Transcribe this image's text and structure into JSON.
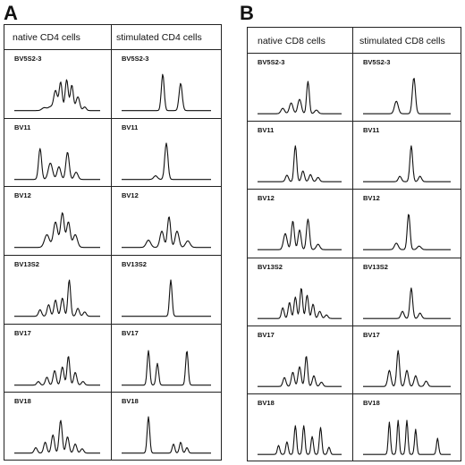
{
  "panels": [
    {
      "letter": "A",
      "columns": [
        "native CD4 cells",
        "stimulated CD4 cells"
      ],
      "rows": [
        {
          "native_label": "BV5S2-3",
          "stim_label": "BV5S2-3",
          "native_peaks": [
            [
              0.35,
              0.08,
              0.08
            ],
            [
              0.42,
              0.1,
              0.07
            ],
            [
              0.48,
              0.55,
              0.06
            ],
            [
              0.54,
              0.78,
              0.05
            ],
            [
              0.61,
              0.85,
              0.05
            ],
            [
              0.67,
              0.7,
              0.05
            ],
            [
              0.74,
              0.38,
              0.06
            ],
            [
              0.82,
              0.1,
              0.05
            ]
          ],
          "stim_peaks": [
            [
              0.46,
              1.0,
              0.045
            ],
            [
              0.66,
              0.75,
              0.05
            ]
          ]
        },
        {
          "native_label": "BV11",
          "stim_label": "BV11",
          "native_peaks": [
            [
              0.3,
              0.85,
              0.05
            ],
            [
              0.42,
              0.45,
              0.07
            ],
            [
              0.52,
              0.35,
              0.06
            ],
            [
              0.62,
              0.75,
              0.055
            ],
            [
              0.72,
              0.2,
              0.06
            ]
          ],
          "stim_peaks": [
            [
              0.5,
              1.0,
              0.05
            ],
            [
              0.38,
              0.1,
              0.06
            ]
          ]
        },
        {
          "native_label": "BV12",
          "stim_label": "BV12",
          "native_peaks": [
            [
              0.38,
              0.35,
              0.08
            ],
            [
              0.48,
              0.7,
              0.07
            ],
            [
              0.56,
              0.95,
              0.06
            ],
            [
              0.63,
              0.7,
              0.06
            ],
            [
              0.71,
              0.35,
              0.07
            ]
          ],
          "stim_peaks": [
            [
              0.3,
              0.2,
              0.07
            ],
            [
              0.45,
              0.45,
              0.06
            ],
            [
              0.53,
              0.85,
              0.05
            ],
            [
              0.62,
              0.45,
              0.06
            ],
            [
              0.74,
              0.18,
              0.07
            ]
          ]
        },
        {
          "native_label": "BV13S2",
          "stim_label": "BV13S2",
          "native_peaks": [
            [
              0.3,
              0.18,
              0.05
            ],
            [
              0.4,
              0.32,
              0.05
            ],
            [
              0.48,
              0.45,
              0.05
            ],
            [
              0.56,
              0.5,
              0.05
            ],
            [
              0.64,
              1.0,
              0.045
            ],
            [
              0.74,
              0.22,
              0.05
            ],
            [
              0.82,
              0.12,
              0.05
            ]
          ],
          "stim_peaks": [
            [
              0.55,
              1.0,
              0.04
            ]
          ]
        },
        {
          "native_label": "BV17",
          "stim_label": "BV17",
          "native_peaks": [
            [
              0.28,
              0.1,
              0.05
            ],
            [
              0.38,
              0.22,
              0.05
            ],
            [
              0.47,
              0.4,
              0.05
            ],
            [
              0.56,
              0.5,
              0.05
            ],
            [
              0.63,
              0.8,
              0.045
            ],
            [
              0.71,
              0.35,
              0.05
            ],
            [
              0.8,
              0.1,
              0.05
            ]
          ],
          "stim_peaks": [
            [
              0.3,
              0.95,
              0.04
            ],
            [
              0.4,
              0.6,
              0.04
            ],
            [
              0.73,
              0.95,
              0.04
            ]
          ]
        },
        {
          "native_label": "BV18",
          "stim_label": "BV18",
          "native_peaks": [
            [
              0.25,
              0.15,
              0.05
            ],
            [
              0.36,
              0.3,
              0.05
            ],
            [
              0.45,
              0.5,
              0.05
            ],
            [
              0.54,
              0.9,
              0.05
            ],
            [
              0.62,
              0.45,
              0.05
            ],
            [
              0.71,
              0.25,
              0.05
            ],
            [
              0.79,
              0.12,
              0.05
            ]
          ],
          "stim_peaks": [
            [
              0.3,
              1.0,
              0.04
            ],
            [
              0.58,
              0.25,
              0.04
            ],
            [
              0.66,
              0.3,
              0.04
            ],
            [
              0.73,
              0.15,
              0.04
            ]
          ]
        }
      ]
    },
    {
      "letter": "B",
      "columns": [
        "native CD8 cells",
        "stimulated CD8 cells"
      ],
      "rows": [
        {
          "native_label": "BV5S2-3",
          "stim_label": "BV5S2-3",
          "native_peaks": [
            [
              0.3,
              0.15,
              0.06
            ],
            [
              0.4,
              0.3,
              0.06
            ],
            [
              0.5,
              0.4,
              0.06
            ],
            [
              0.6,
              0.9,
              0.045
            ],
            [
              0.7,
              0.1,
              0.06
            ]
          ],
          "stim_peaks": [
            [
              0.38,
              0.35,
              0.06
            ],
            [
              0.58,
              1.0,
              0.05
            ]
          ]
        },
        {
          "native_label": "BV11",
          "stim_label": "BV11",
          "native_peaks": [
            [
              0.35,
              0.18,
              0.05
            ],
            [
              0.45,
              1.0,
              0.045
            ],
            [
              0.54,
              0.3,
              0.05
            ],
            [
              0.63,
              0.2,
              0.05
            ],
            [
              0.72,
              0.12,
              0.05
            ]
          ],
          "stim_peaks": [
            [
              0.42,
              0.15,
              0.05
            ],
            [
              0.55,
              1.0,
              0.045
            ],
            [
              0.65,
              0.15,
              0.05
            ]
          ]
        },
        {
          "native_label": "BV12",
          "stim_label": "BV12",
          "native_peaks": [
            [
              0.33,
              0.45,
              0.06
            ],
            [
              0.42,
              0.8,
              0.05
            ],
            [
              0.5,
              0.55,
              0.05
            ],
            [
              0.6,
              0.85,
              0.05
            ],
            [
              0.72,
              0.15,
              0.06
            ]
          ],
          "stim_peaks": [
            [
              0.38,
              0.18,
              0.06
            ],
            [
              0.52,
              1.0,
              0.045
            ],
            [
              0.64,
              0.1,
              0.06
            ]
          ]
        },
        {
          "native_label": "BV13S2",
          "stim_label": "BV13S2",
          "native_peaks": [
            [
              0.3,
              0.3,
              0.045
            ],
            [
              0.38,
              0.45,
              0.045
            ],
            [
              0.45,
              0.6,
              0.045
            ],
            [
              0.52,
              0.85,
              0.045
            ],
            [
              0.59,
              0.65,
              0.045
            ],
            [
              0.66,
              0.4,
              0.045
            ],
            [
              0.74,
              0.2,
              0.05
            ],
            [
              0.82,
              0.1,
              0.05
            ]
          ],
          "stim_peaks": [
            [
              0.45,
              0.2,
              0.05
            ],
            [
              0.55,
              0.85,
              0.045
            ],
            [
              0.65,
              0.15,
              0.05
            ]
          ]
        },
        {
          "native_label": "BV17",
          "stim_label": "BV17",
          "native_peaks": [
            [
              0.32,
              0.25,
              0.05
            ],
            [
              0.42,
              0.4,
              0.05
            ],
            [
              0.5,
              0.55,
              0.05
            ],
            [
              0.58,
              0.85,
              0.045
            ],
            [
              0.67,
              0.3,
              0.05
            ],
            [
              0.76,
              0.12,
              0.05
            ]
          ],
          "stim_peaks": [
            [
              0.3,
              0.45,
              0.05
            ],
            [
              0.4,
              1.0,
              0.045
            ],
            [
              0.5,
              0.45,
              0.05
            ],
            [
              0.6,
              0.3,
              0.05
            ],
            [
              0.72,
              0.15,
              0.05
            ]
          ]
        },
        {
          "native_label": "BV18",
          "stim_label": "BV18",
          "native_peaks": [
            [
              0.25,
              0.25,
              0.04
            ],
            [
              0.35,
              0.35,
              0.04
            ],
            [
              0.45,
              0.8,
              0.04
            ],
            [
              0.55,
              0.8,
              0.04
            ],
            [
              0.65,
              0.5,
              0.04
            ],
            [
              0.75,
              0.75,
              0.04
            ],
            [
              0.85,
              0.2,
              0.04
            ]
          ],
          "stim_peaks": [
            [
              0.3,
              0.9,
              0.035
            ],
            [
              0.4,
              0.95,
              0.035
            ],
            [
              0.5,
              0.95,
              0.035
            ],
            [
              0.6,
              0.7,
              0.035
            ],
            [
              0.85,
              0.45,
              0.035
            ]
          ]
        }
      ]
    }
  ]
}
